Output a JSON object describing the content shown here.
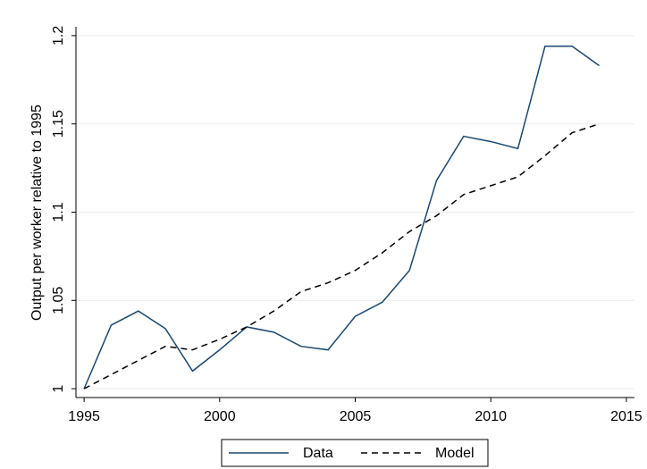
{
  "chart_data": {
    "type": "line",
    "y_label": "Output per worker relative to 1995",
    "x": [
      1995,
      1996,
      1997,
      1998,
      1999,
      2000,
      2001,
      2002,
      2003,
      2004,
      2005,
      2006,
      2007,
      2008,
      2009,
      2010,
      2011,
      2012,
      2013,
      2014
    ],
    "series": [
      {
        "name": "Data",
        "color": "#1a476f",
        "dash": "solid",
        "values": [
          1.0,
          1.036,
          1.044,
          1.034,
          1.01,
          1.022,
          1.035,
          1.032,
          1.024,
          1.022,
          1.041,
          1.049,
          1.067,
          1.118,
          1.143,
          1.14,
          1.136,
          1.194,
          1.194,
          1.183
        ]
      },
      {
        "name": "Model",
        "color": "#000000",
        "dash": "dashed",
        "values": [
          1.0,
          1.008,
          1.016,
          1.024,
          1.022,
          1.028,
          1.035,
          1.044,
          1.055,
          1.06,
          1.067,
          1.077,
          1.089,
          1.098,
          1.11,
          1.115,
          1.12,
          1.132,
          1.145,
          1.15
        ]
      }
    ],
    "xlim": [
      1994.7,
      2015.3
    ],
    "xticks": [
      1995,
      2000,
      2005,
      2010,
      2015
    ],
    "ylim": [
      0.995,
      1.205
    ],
    "yticks": [
      1,
      1.05,
      1.1,
      1.15,
      1.2
    ],
    "grid": true,
    "legend": "bottom"
  }
}
